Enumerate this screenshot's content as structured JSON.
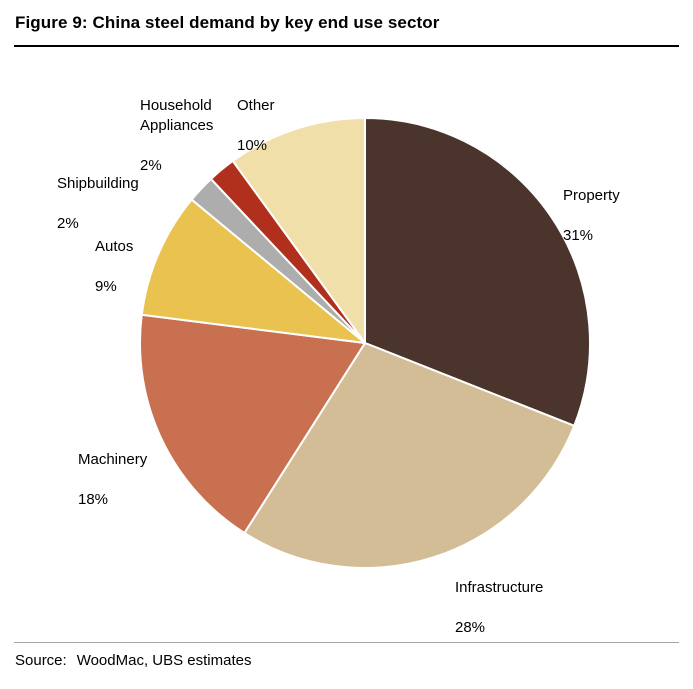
{
  "title": "Figure 9: China steel demand by key end use sector",
  "source": {
    "label": "Source:",
    "text": "WoodMac, UBS estimates"
  },
  "chart_data": {
    "type": "pie",
    "title": "China steel demand by key end use sector",
    "start_angle_deg": 0,
    "direction": "clockwise",
    "legend_position": "labels-around-pie",
    "stroke_color": "#ffffff",
    "slices": [
      {
        "label": "Property",
        "value": 31,
        "pct_label": "31%",
        "color": "#4B342B"
      },
      {
        "label": "Infrastructure",
        "value": 28,
        "pct_label": "28%",
        "color": "#D3BD96"
      },
      {
        "label": "Machinery",
        "value": 18,
        "pct_label": "18%",
        "color": "#C8704F"
      },
      {
        "label": "Autos",
        "value": 9,
        "pct_label": "9%",
        "color": "#E9C24F"
      },
      {
        "label": "Shipbuilding",
        "value": 2,
        "pct_label": "2%",
        "color": "#ADADAD"
      },
      {
        "label": "Household Appliances",
        "value": 2,
        "pct_label": "2%",
        "color": "#B02F1D"
      },
      {
        "label": "Other",
        "value": 10,
        "pct_label": "10%",
        "color": "#F1DFA9"
      }
    ]
  }
}
